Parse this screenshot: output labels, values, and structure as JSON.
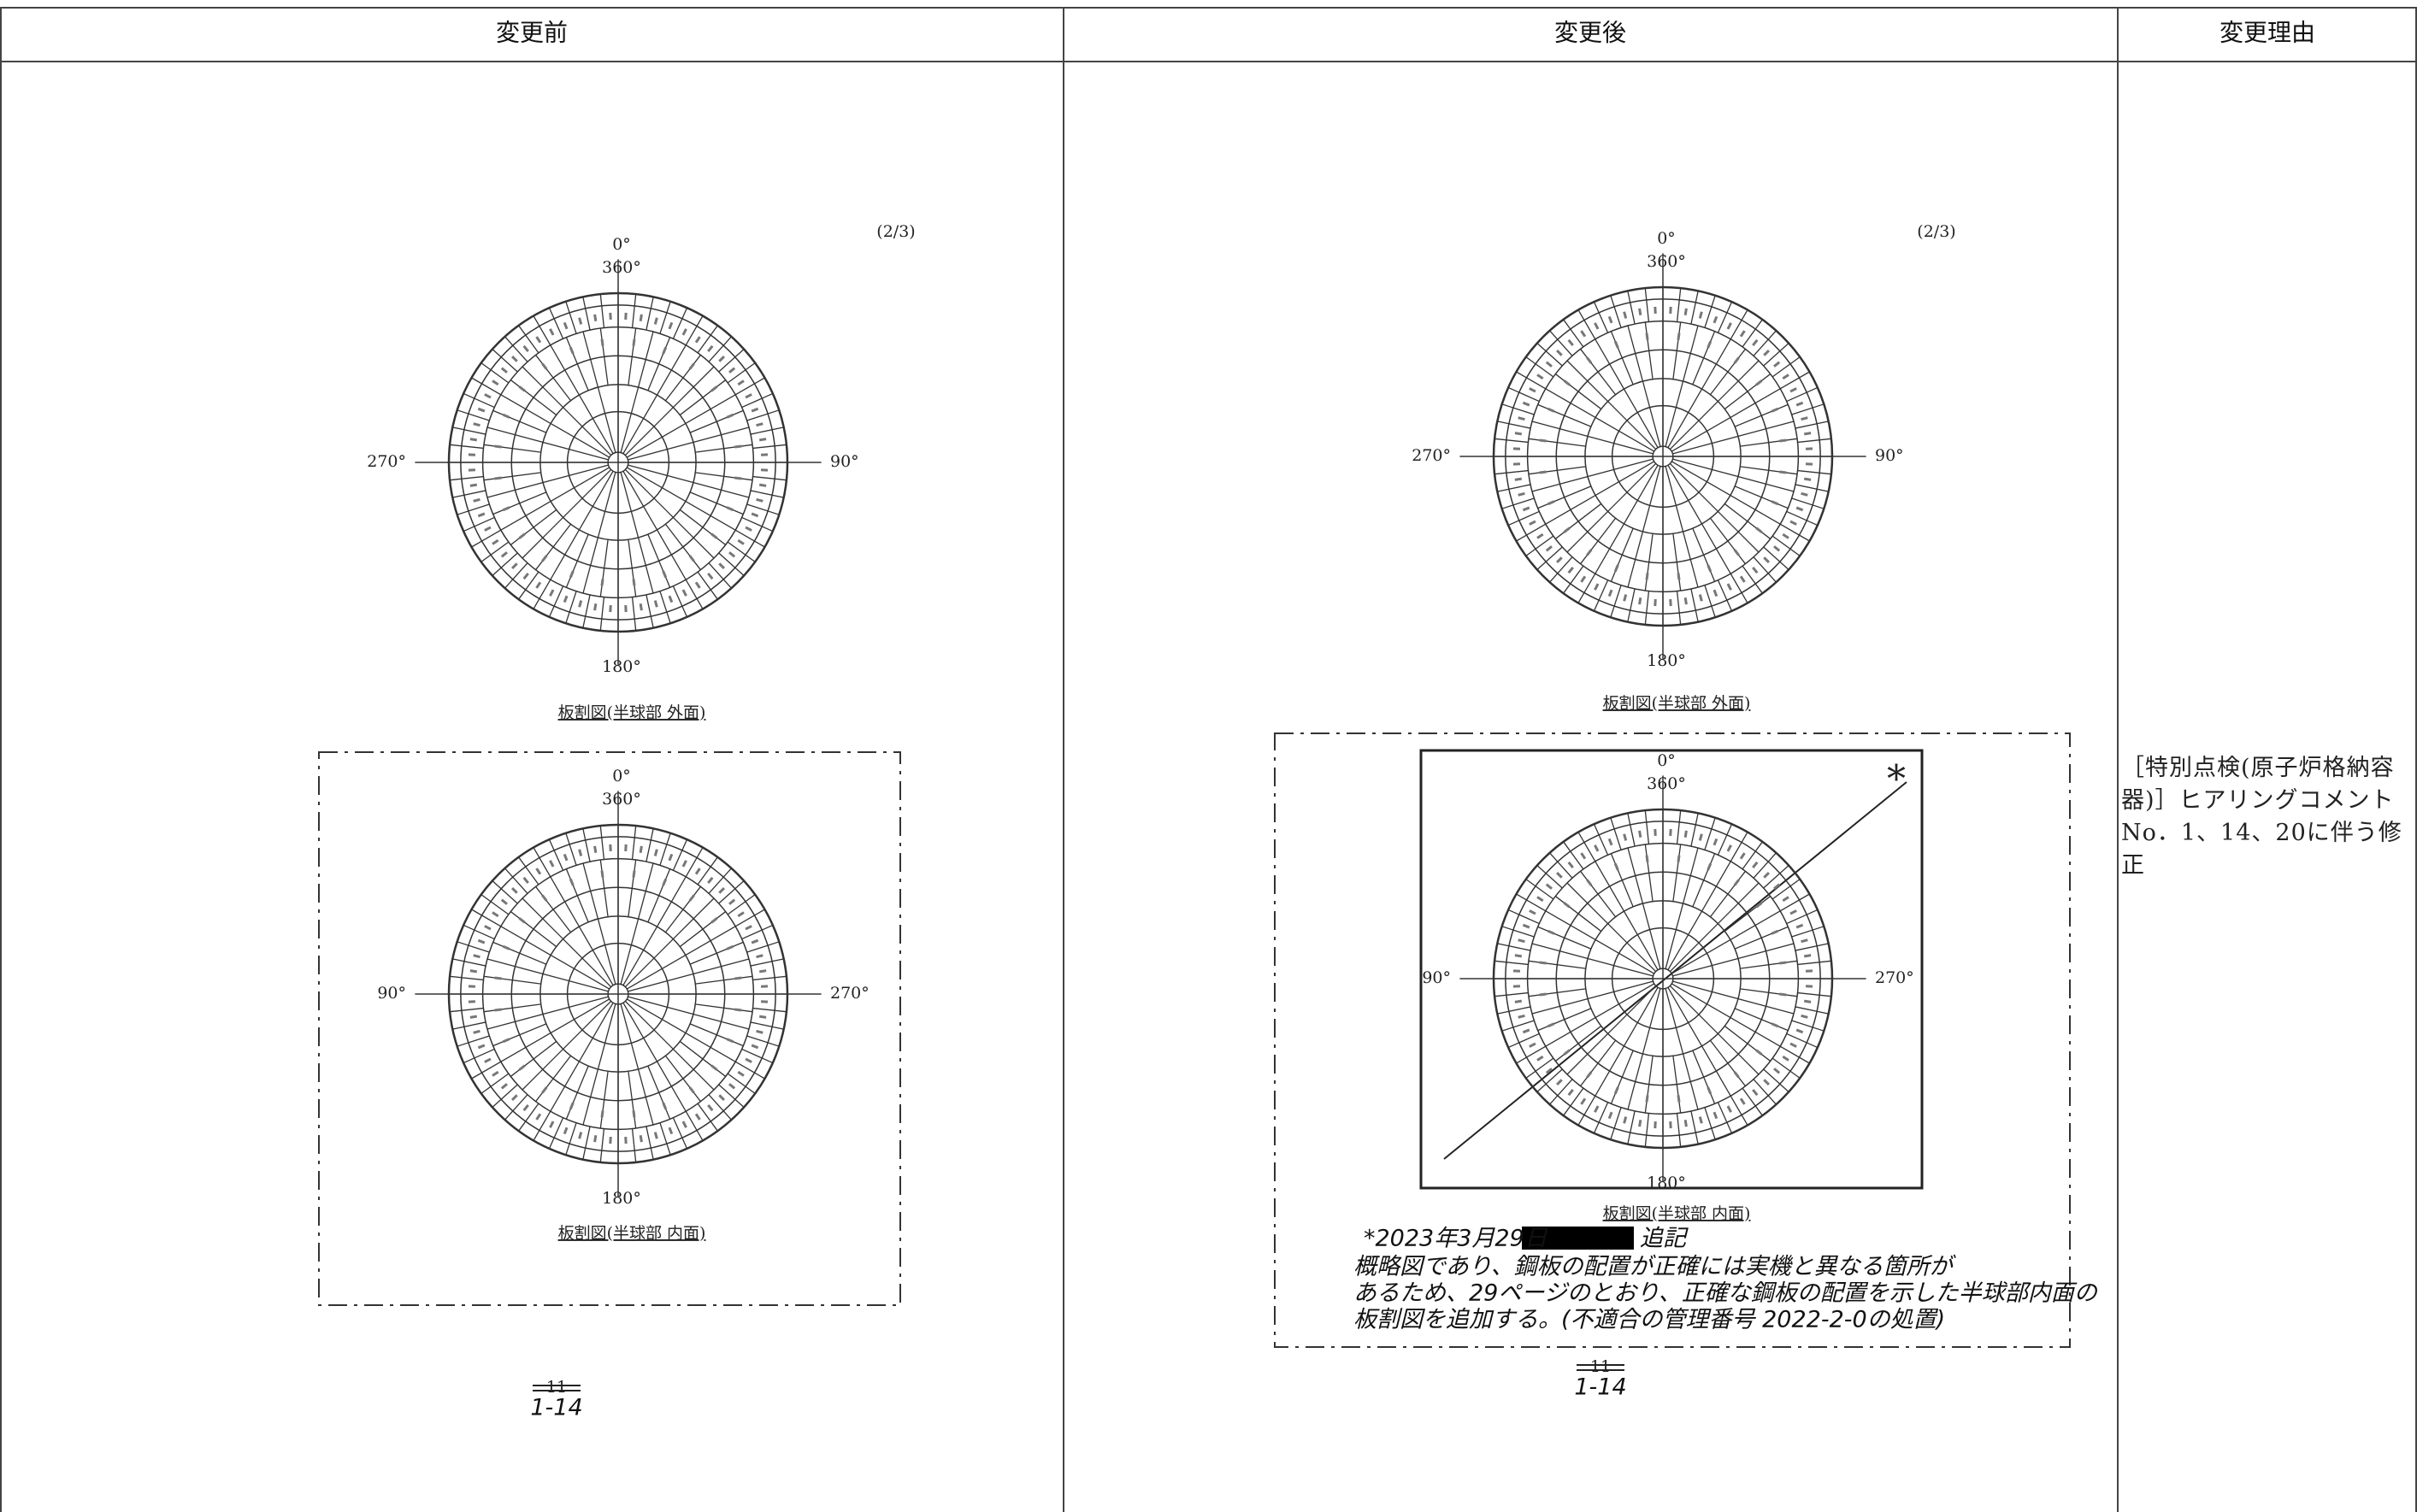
{
  "table": {
    "headers": [
      "変更前",
      "変更後",
      "変更理由"
    ],
    "before": {
      "page_marker": "(2/3)",
      "outer": {
        "top": "0°",
        "top2": "360°",
        "left": "270°",
        "right": "90°",
        "bottom": "180°",
        "caption": "板割図(半球部 外面)"
      },
      "inner": {
        "top": "0°",
        "top2": "360°",
        "left": "90°",
        "right": "270°",
        "bottom": "180°",
        "caption": "板割図(半球部 内面)"
      },
      "page_old": "11",
      "page_new": "1-14"
    },
    "after": {
      "page_marker": "(2/3)",
      "outer": {
        "top": "0°",
        "top2": "360°",
        "left": "270°",
        "right": "90°",
        "bottom": "180°",
        "caption": "板割図(半球部 外面)"
      },
      "inner": {
        "top": "0°",
        "top2": "360°",
        "left": "90°",
        "right": "270°",
        "bottom": "180°",
        "caption": "板割図(半球部 内面)",
        "mark": "*"
      },
      "note": {
        "date": "*2023年3月29日",
        "suffix": "追記",
        "lines": [
          "概略図であり、鋼板の配置が正確には実機と異なる箇所が",
          "あるため、29ページのとおり、正確な鋼板の配置を示した半球部内面の",
          "板割図を追加する。(不適合の管理番号 2022-2-0の処置)"
        ]
      },
      "page_old": "11",
      "page_new": "1-14"
    },
    "reason": "［特別点検(原子炉格納容器)］ヒアリングコメントNo．1、14、20に伴う修正"
  }
}
